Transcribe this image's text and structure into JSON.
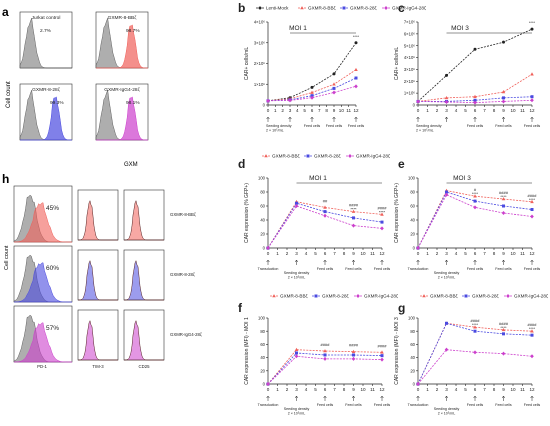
{
  "colors": {
    "mock": "#222222",
    "bbz": "#f0605a",
    "z28": "#4a4ae0",
    "igg4": "#cc3fcc",
    "grey": "#9a9a9a",
    "dark": "#555555"
  },
  "panel_a": {
    "letter": "a",
    "ylabel": "Cell count",
    "xlabel": "GXM",
    "histos": [
      {
        "title": "Jurkat control",
        "pct": "2.7%",
        "color": "#9a9a9a"
      },
      {
        "title": "GXMR-8-BBζ",
        "pct": "98.7%",
        "color": "#f0605a"
      },
      {
        "title": "GXMR-8-28ζ",
        "pct": "99.3%",
        "color": "#4a4ae0"
      },
      {
        "title": "GXMR-IgG4-28ζ",
        "pct": "98.1%",
        "color": "#cc3fcc"
      }
    ]
  },
  "panel_h": {
    "letter": "h",
    "ylabel": "Cell count",
    "xlabels": [
      "PD-1",
      "TIM-3",
      "CD25"
    ],
    "rows": [
      {
        "pct": "45%",
        "label": "GXMR-8-BBζ",
        "color": "#f0605a"
      },
      {
        "pct": "60%",
        "label": "GXMR-8-28ζ",
        "color": "#4a4ae0"
      },
      {
        "pct": "57%",
        "label": "GXMR-IgG4-28ζ",
        "color": "#cc3fcc"
      }
    ]
  },
  "timeline": {
    "feed": "Feed cells",
    "seed1": "Seeding density",
    "seed2": "2 × 10⁵/mL",
    "transduction": "Transduction"
  },
  "chart_data": [
    {
      "panel": "b",
      "type": "line",
      "title": "MOI 1",
      "ylabel": "CAR+ cells/mL",
      "x": [
        0,
        1,
        2,
        3,
        4,
        5,
        6,
        7,
        8,
        9,
        10,
        11,
        12
      ],
      "yticks": [
        "0",
        "1×10⁶",
        "2×10⁶",
        "3×10⁶",
        "4×10⁶"
      ],
      "ylim": [
        0,
        4
      ],
      "legend": [
        "Lenti-Mock",
        "GXMR-8-BBζ",
        "GXMR-8-28ζ",
        "GXMR-IgG4-28ζ"
      ],
      "series": [
        {
          "name": "Lenti-Mock",
          "x": [
            0,
            3,
            6,
            9,
            12
          ],
          "values": [
            0.2,
            0.35,
            0.85,
            1.5,
            3.0
          ]
        },
        {
          "name": "GXMR-8-BBζ",
          "x": [
            0,
            3,
            6,
            9,
            12
          ],
          "values": [
            0.2,
            0.3,
            0.6,
            1.0,
            1.7
          ]
        },
        {
          "name": "GXMR-8-28ζ",
          "x": [
            0,
            3,
            6,
            9,
            12
          ],
          "values": [
            0.2,
            0.25,
            0.45,
            0.8,
            1.3
          ]
        },
        {
          "name": "GXMR-IgG4-28ζ",
          "x": [
            0,
            3,
            6,
            9,
            12
          ],
          "values": [
            0.2,
            0.22,
            0.35,
            0.6,
            0.9
          ]
        }
      ],
      "stars": [
        {
          "x": 12,
          "text": "****"
        }
      ]
    },
    {
      "panel": "c",
      "type": "line",
      "title": "MOI 3",
      "ylabel": "CAR+ cells/mL",
      "x": [
        0,
        1,
        2,
        3,
        4,
        5,
        6,
        7,
        8,
        9,
        10,
        11,
        12
      ],
      "yticks": [
        "0",
        "1×10⁶",
        "2×10⁶",
        "3×10⁶",
        "4×10⁶",
        "5×10⁶",
        "6×10⁶",
        "7×10⁶"
      ],
      "ylim": [
        0,
        7
      ],
      "series": [
        {
          "name": "Lenti-Mock",
          "x": [
            0,
            3,
            6,
            9,
            12
          ],
          "values": [
            0.3,
            2.5,
            4.7,
            5.3,
            6.4
          ]
        },
        {
          "name": "GXMR-8-BBζ",
          "x": [
            0,
            3,
            6,
            9,
            12
          ],
          "values": [
            0.3,
            0.6,
            0.7,
            1.1,
            2.6
          ]
        },
        {
          "name": "GXMR-8-28ζ",
          "x": [
            0,
            3,
            6,
            9,
            12
          ],
          "values": [
            0.3,
            0.3,
            0.4,
            0.6,
            0.7
          ]
        },
        {
          "name": "GXMR-IgG4-28ζ",
          "x": [
            0,
            3,
            6,
            9,
            12
          ],
          "values": [
            0.3,
            0.25,
            0.2,
            0.3,
            0.4
          ]
        }
      ],
      "stars": [
        {
          "x": 12,
          "text": "****"
        }
      ]
    },
    {
      "panel": "d",
      "type": "line",
      "title": "MOI 1",
      "ylabel": "CAR expression (% GFP+)",
      "x": [
        0,
        1,
        2,
        3,
        4,
        5,
        6,
        7,
        8,
        9,
        10,
        11,
        12
      ],
      "yticks": [
        "0",
        "20",
        "40",
        "60",
        "80",
        "100"
      ],
      "ylim": [
        0,
        100
      ],
      "legend": [
        "GXMR-8-BBζ",
        "GXMR-8-28ζ",
        "GXMR-IgG4-28ζ"
      ],
      "series": [
        {
          "name": "GXMR-8-BBζ",
          "x": [
            0,
            3,
            6,
            9,
            12
          ],
          "values": [
            0,
            66,
            58,
            52,
            48
          ]
        },
        {
          "name": "GXMR-8-28ζ",
          "x": [
            0,
            3,
            6,
            9,
            12
          ],
          "values": [
            0,
            64,
            52,
            43,
            37
          ]
        },
        {
          "name": "GXMR-IgG4-28ζ",
          "x": [
            0,
            3,
            6,
            9,
            12
          ],
          "values": [
            0,
            60,
            46,
            32,
            28
          ]
        }
      ],
      "stars": [
        {
          "x": 6,
          "text": "##",
          "row": 0
        },
        {
          "x": 9,
          "text": "####",
          "row": 0
        },
        {
          "x": 9,
          "text": "****",
          "row": 1
        },
        {
          "x": 12,
          "text": "####",
          "row": 0
        },
        {
          "x": 12,
          "text": "****",
          "row": 1
        }
      ]
    },
    {
      "panel": "e",
      "type": "line",
      "title": "MOI 3",
      "ylabel": "CAR expression (% GFP+)",
      "x": [
        0,
        1,
        2,
        3,
        4,
        5,
        6,
        7,
        8,
        9,
        10,
        11,
        12
      ],
      "yticks": [
        "0",
        "20",
        "40",
        "60",
        "80",
        "100"
      ],
      "ylim": [
        0,
        100
      ],
      "series": [
        {
          "name": "GXMR-8-BBζ",
          "x": [
            0,
            3,
            6,
            9,
            12
          ],
          "values": [
            0,
            82,
            74,
            70,
            66
          ]
        },
        {
          "name": "GXMR-8-28ζ",
          "x": [
            0,
            3,
            6,
            9,
            12
          ],
          "values": [
            0,
            80,
            67,
            60,
            55
          ]
        },
        {
          "name": "GXMR-IgG4-28ζ",
          "x": [
            0,
            3,
            6,
            9,
            12
          ],
          "values": [
            0,
            76,
            58,
            50,
            45
          ]
        }
      ],
      "stars": [
        {
          "x": 6,
          "text": "#",
          "row": 0
        },
        {
          "x": 6,
          "text": "****",
          "row": 1
        },
        {
          "x": 9,
          "text": "####",
          "row": 0
        },
        {
          "x": 9,
          "text": "****",
          "row": 1
        },
        {
          "x": 12,
          "text": "####",
          "row": 0
        },
        {
          "x": 12,
          "text": "****",
          "row": 1
        }
      ]
    },
    {
      "panel": "f",
      "type": "line",
      "ylabel": "CAR expression (MFI) - MOI 1",
      "x": [
        0,
        1,
        2,
        3,
        4,
        5,
        6,
        7,
        8,
        9,
        10,
        11,
        12
      ],
      "yticks": [
        "0",
        "20",
        "40",
        "60",
        "80",
        "100"
      ],
      "ylim": [
        0,
        100
      ],
      "legend": [
        "GXMR-8-BBζ",
        "GXMR-8-28ζ",
        "GXMR-IgG4-28ζ"
      ],
      "series": [
        {
          "name": "GXMR-8-BBζ",
          "x": [
            0,
            3,
            6,
            9,
            12
          ],
          "values": [
            0,
            52,
            50,
            49,
            48
          ]
        },
        {
          "name": "GXMR-8-28ζ",
          "x": [
            0,
            3,
            6,
            9,
            12
          ],
          "values": [
            0,
            47,
            44,
            44,
            43
          ]
        },
        {
          "name": "GXMR-IgG4-28ζ",
          "x": [
            0,
            3,
            6,
            9,
            12
          ],
          "values": [
            0,
            42,
            38,
            38,
            37
          ]
        }
      ],
      "stars": [
        {
          "x": 6,
          "text": "####",
          "row": 0
        },
        {
          "x": 9,
          "text": "####",
          "row": 0
        },
        {
          "x": 12,
          "text": "####",
          "row": 0
        }
      ]
    },
    {
      "panel": "g",
      "type": "line",
      "ylabel": "CAR expression (MFI) - MOI 3",
      "x": [
        0,
        1,
        2,
        3,
        4,
        5,
        6,
        7,
        8,
        9,
        10,
        11,
        12
      ],
      "yticks": [
        "0",
        "20",
        "40",
        "60",
        "80",
        "100"
      ],
      "ylim": [
        0,
        100
      ],
      "legend": [
        "GXMR-8-BBζ",
        "GXMR-8-28ζ",
        "GXMR-IgG4-28ζ"
      ],
      "series": [
        {
          "name": "GXMR-8-BBζ",
          "x": [
            0,
            3,
            6,
            9,
            12
          ],
          "values": [
            0,
            92,
            86,
            82,
            80
          ]
        },
        {
          "name": "GXMR-8-28ζ",
          "x": [
            0,
            3,
            6,
            9,
            12
          ],
          "values": [
            0,
            92,
            80,
            76,
            74
          ]
        },
        {
          "name": "GXMR-IgG4-28ζ",
          "x": [
            0,
            3,
            6,
            9,
            12
          ],
          "values": [
            0,
            52,
            48,
            46,
            42
          ]
        }
      ],
      "stars": [
        {
          "x": 6,
          "text": "####",
          "row": 0
        },
        {
          "x": 6,
          "text": "****",
          "row": 1
        },
        {
          "x": 9,
          "text": "####",
          "row": 0
        },
        {
          "x": 9,
          "text": "****",
          "row": 1
        },
        {
          "x": 12,
          "text": "####",
          "row": 0
        },
        {
          "x": 12,
          "text": "****",
          "row": 1
        }
      ]
    }
  ]
}
